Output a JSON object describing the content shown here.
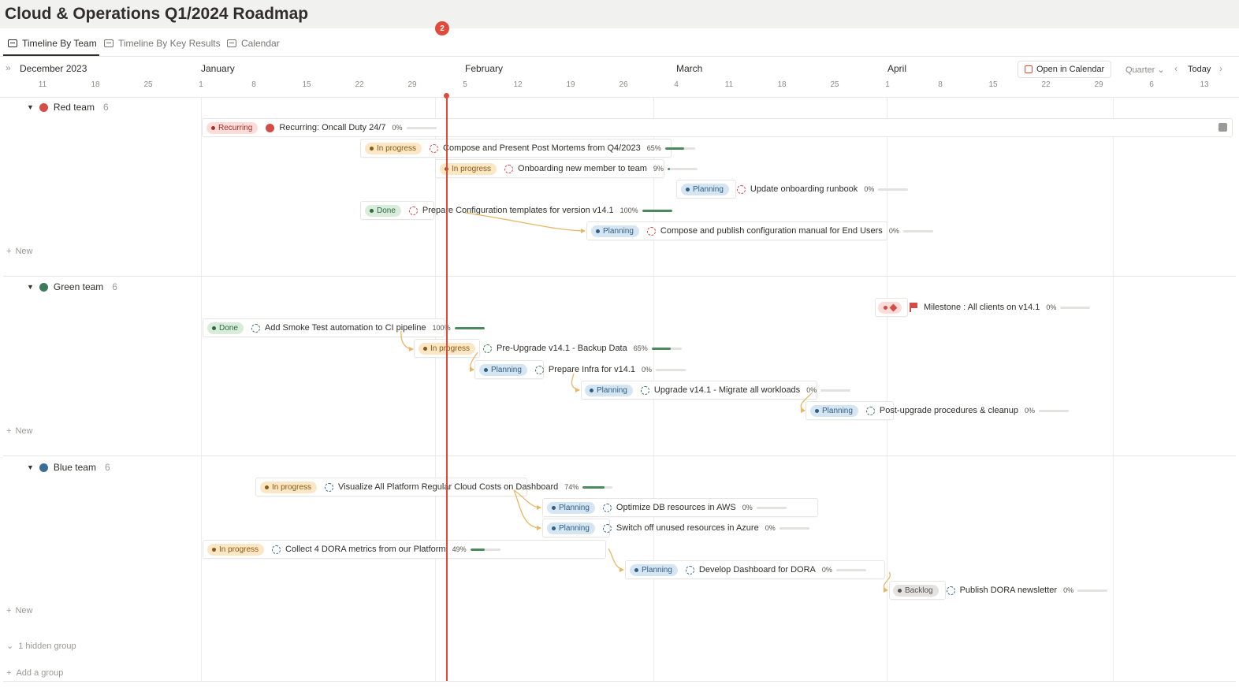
{
  "page": {
    "title": "Cloud & Operations Q1/2024 Roadmap"
  },
  "tabs": [
    {
      "label": "Timeline By Team",
      "active": true
    },
    {
      "label": "Timeline By Key Results",
      "active": false
    },
    {
      "label": "Calendar",
      "active": false
    }
  ],
  "header": {
    "months": [
      "December 2023",
      "January",
      "February",
      "March",
      "April"
    ],
    "days": [
      "11",
      "18",
      "25",
      "1",
      "8",
      "15",
      "22",
      "29",
      "5",
      "12",
      "19",
      "26",
      "4",
      "11",
      "18",
      "25",
      "1",
      "8",
      "15",
      "22",
      "29",
      "6",
      "13"
    ],
    "today_day": "2",
    "open_calendar_label": "Open in Calendar",
    "zoom_label": "Quarter",
    "today_label": "Today"
  },
  "colors": {
    "red_team": "#d44c47",
    "green_team": "#3f7a5b",
    "blue_team": "#3b6e96",
    "today_line": "#e04a3b",
    "dependency_arrow": "#e8b765"
  },
  "groups": [
    {
      "name": "Red team",
      "count": "6",
      "new_label": "New",
      "tasks": [
        {
          "status": "Recurring",
          "name": "Recurring: Oncall Duty 24/7",
          "progress": "0%",
          "progress_value": 0
        },
        {
          "status": "In progress",
          "name": "Compose and Present Post Mortems from Q4/2023",
          "progress": "65%",
          "progress_value": 65
        },
        {
          "status": "In progress",
          "name": "Onboarding new member to team",
          "progress": "9%",
          "progress_value": 9
        },
        {
          "status": "Planning",
          "name": "Update onboarding runbook",
          "progress": "0%",
          "progress_value": 0
        },
        {
          "status": "Done",
          "name": "Prepare Configuration templates for version v14.1",
          "progress": "100%",
          "progress_value": 100
        },
        {
          "status": "Planning",
          "name": "Compose and publish configuration manual for End Users",
          "progress": "0%",
          "progress_value": 0
        }
      ]
    },
    {
      "name": "Green team",
      "count": "6",
      "new_label": "New",
      "tasks": [
        {
          "status": "Milestone",
          "name": "Milestone : All clients on v14.1",
          "progress": "0%",
          "progress_value": 0
        },
        {
          "status": "Done",
          "name": "Add Smoke Test automation to CI pipeline",
          "progress": "100%",
          "progress_value": 100
        },
        {
          "status": "In progress",
          "name": "Pre-Upgrade v14.1 - Backup Data",
          "progress": "65%",
          "progress_value": 65
        },
        {
          "status": "Planning",
          "name": "Prepare Infra for v14.1",
          "progress": "0%",
          "progress_value": 0
        },
        {
          "status": "Planning",
          "name": "Upgrade v14.1 - Migrate all workloads",
          "progress": "0%",
          "progress_value": 0
        },
        {
          "status": "Planning",
          "name": "Post-upgrade procedures & cleanup",
          "progress": "0%",
          "progress_value": 0
        }
      ]
    },
    {
      "name": "Blue team",
      "count": "6",
      "new_label": "New",
      "tasks": [
        {
          "status": "In progress",
          "name": "Visualize All Platform Regular Cloud Costs on Dashboard",
          "progress": "74%",
          "progress_value": 74
        },
        {
          "status": "Planning",
          "name": "Optimize DB resources in AWS",
          "progress": "0%",
          "progress_value": 0
        },
        {
          "status": "Planning",
          "name": "Switch off unused resources in Azure",
          "progress": "0%",
          "progress_value": 0
        },
        {
          "status": "In progress",
          "name": "Collect 4 DORA metrics from our Platform",
          "progress": "49%",
          "progress_value": 49
        },
        {
          "status": "Planning",
          "name": "Develop Dashboard for DORA",
          "progress": "0%",
          "progress_value": 0
        },
        {
          "status": "Backlog",
          "name": "Publish DORA newsletter",
          "progress": "0%",
          "progress_value": 0
        }
      ]
    }
  ],
  "footer": {
    "hidden_groups_label": "1 hidden group",
    "add_group_label": "Add a group"
  }
}
